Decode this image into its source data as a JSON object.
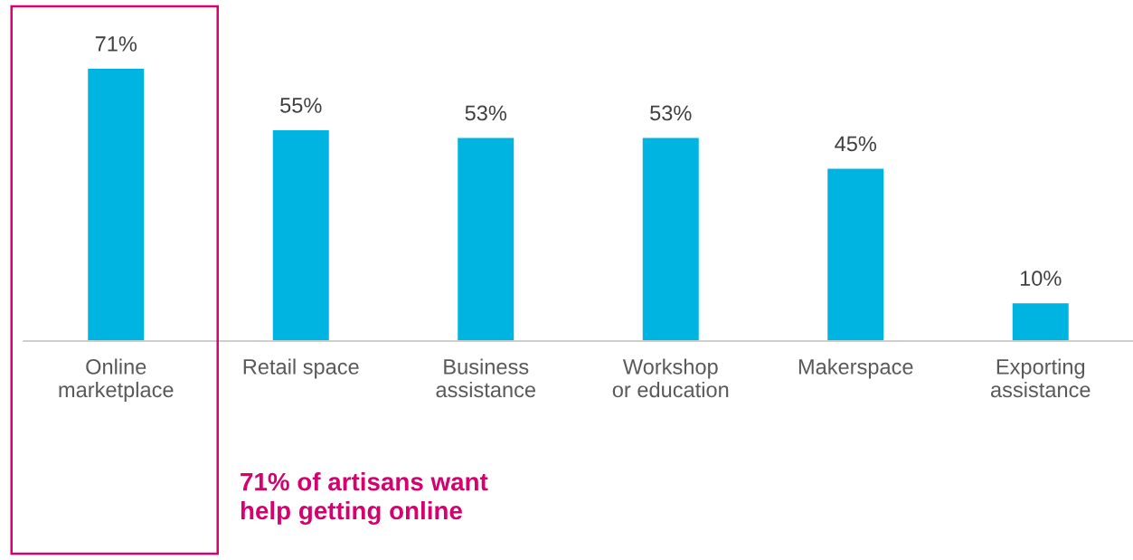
{
  "chart_data": {
    "type": "bar",
    "categories": [
      "Online\nmarketplace",
      "Retail space",
      "Business\nassistance",
      "Workshop\nor education",
      "Makerspace",
      "Exporting\nassistance"
    ],
    "values": [
      71,
      55,
      53,
      53,
      45,
      10
    ],
    "color": "#00b4e1",
    "data_labels": true,
    "value_labels": [
      "71%",
      "55%",
      "53%",
      "53%",
      "45%",
      "10%"
    ],
    "tick_labels": "x",
    "grid": false,
    "legend": false,
    "annotations": [
      "71% of artisans want\nhelp getting online"
    ]
  }
}
